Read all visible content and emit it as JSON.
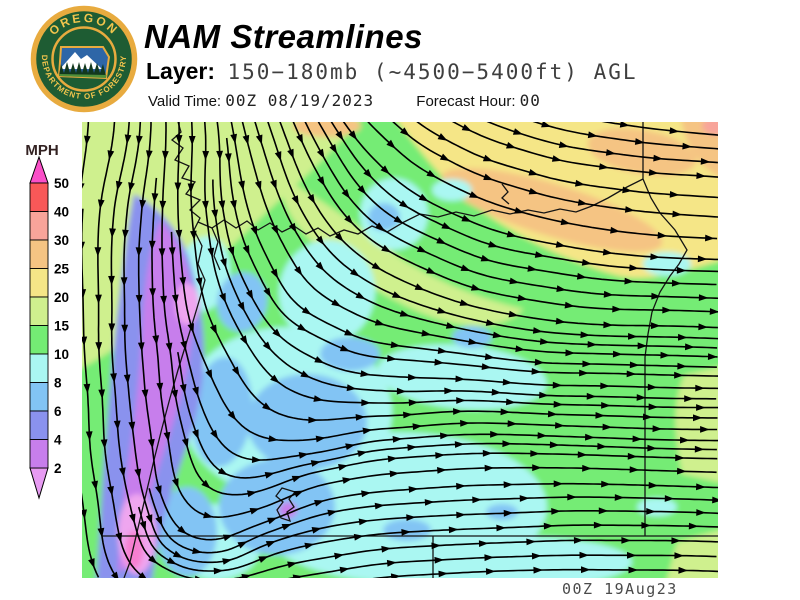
{
  "header": {
    "title": "NAM Streamlines",
    "layer_label": "Layer:",
    "layer_value": "150−180mb (~4500−5400ft) AGL",
    "valid_label": "Valid Time:",
    "valid_value": "00Z 08/19/2023",
    "forecast_label": "Forecast Hour:",
    "forecast_value": "00"
  },
  "logo": {
    "ring_text_top": "OREGON",
    "ring_text_bottom": "DEPARTMENT OF FORESTRY",
    "ring_color": "#1e5c33",
    "gold": "#e8ab3f",
    "text_gold": "#f2c54d",
    "emblem_sky": "#2e66a7",
    "emblem_trees": "#12381e",
    "emblem_ground": "#4f8f3a"
  },
  "legend": {
    "units_label": "MPH",
    "ticks": [
      "50",
      "40",
      "30",
      "25",
      "20",
      "15",
      "10",
      "8",
      "6",
      "4",
      "2"
    ],
    "segments": [
      {
        "range": "40-50",
        "color": "#f85858"
      },
      {
        "range": "30-40",
        "color": "#f8a49a"
      },
      {
        "range": "25-30",
        "color": "#f5c483"
      },
      {
        "range": "20-25",
        "color": "#f5e687"
      },
      {
        "range": "15-20",
        "color": "#cff08e"
      },
      {
        "range": "10-15",
        "color": "#74ec74"
      },
      {
        "range": "8-10",
        "color": "#aaf7f2"
      },
      {
        "range": "6-8",
        "color": "#82c4f4"
      },
      {
        "range": "4-6",
        "color": "#8a92ee"
      },
      {
        "range": "2-4",
        "color": "#c77eec"
      }
    ],
    "above_max_color": "#fa4fc8",
    "below_min_color": "#e79bf2"
  },
  "map": {
    "timestamp": "00Z 19Aug23",
    "description": "NAM streamline analysis with wind speed shading (MPH) over Oregon; light winds (purple/pink trough) along the coast, 20-30 MPH easterly-moving flow over northeast Oregon",
    "extra_colors": {
      "pink_core": "#efa6ef",
      "hot_pink_core": "#f77fd0",
      "boundary": "#141414",
      "streamline": "#000000"
    }
  }
}
